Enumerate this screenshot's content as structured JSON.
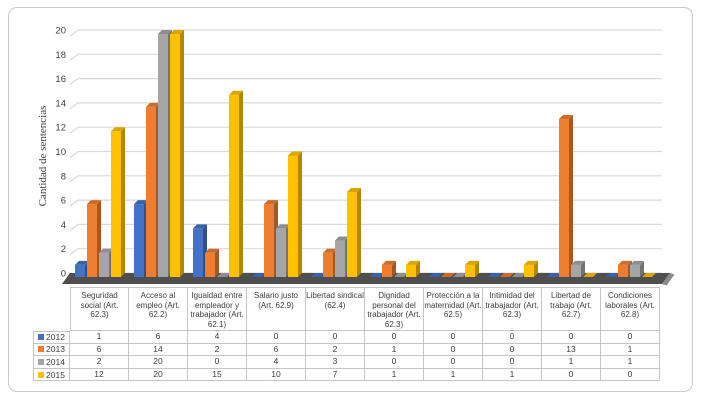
{
  "frame": {
    "background": "#ffffff",
    "border_color": "#c9c9c9"
  },
  "colors": {
    "gridline": "#d9d9d9",
    "floor": "#4f4f4f",
    "floor_side": "#8a8a8a",
    "table_border": "#c6c6c6",
    "text": "#3d3d3d"
  },
  "chart_data": {
    "type": "bar",
    "style": "3d-clustered-column",
    "title": "",
    "xlabel": "",
    "ylabel": "Cantidad de sentencias",
    "ylim": [
      0,
      20
    ],
    "ytick_step": 2,
    "yticks": [
      0,
      2,
      4,
      6,
      8,
      10,
      12,
      14,
      16,
      18,
      20
    ],
    "grid": true,
    "legend_position": "table-left",
    "categories": [
      "Seguridad social (Art. 62.3)",
      "Acceso al empleo (Art. 62.2)",
      "Igualdad entre empleador y trabajador (Art. 62.1)",
      "Salario justo (Art. 62.9)",
      "Libertad sindical (62.4)",
      "Dignidad personal del trabajador (Art. 62.3)",
      "Protección a la maternidad (Art. 62.5)",
      "Intimidad del trabajador (Art. 62.3)",
      "Libertad de trabajo (Art. 62.7)",
      "Condiciones laborales (Art. 62.8)"
    ],
    "series": [
      {
        "name": "2012",
        "color": "#4472C4",
        "values": [
          1,
          6,
          4,
          0,
          0,
          0,
          0,
          0,
          0,
          0
        ]
      },
      {
        "name": "2013",
        "color": "#ED7D31",
        "values": [
          6,
          14,
          2,
          6,
          2,
          1,
          0,
          0,
          13,
          1
        ]
      },
      {
        "name": "2014",
        "color": "#A5A5A5",
        "values": [
          2,
          20,
          0,
          4,
          3,
          0,
          0,
          0,
          1,
          1
        ]
      },
      {
        "name": "2015",
        "color": "#FFC000",
        "values": [
          12,
          20,
          15,
          10,
          7,
          1,
          1,
          1,
          0,
          0
        ]
      }
    ]
  }
}
